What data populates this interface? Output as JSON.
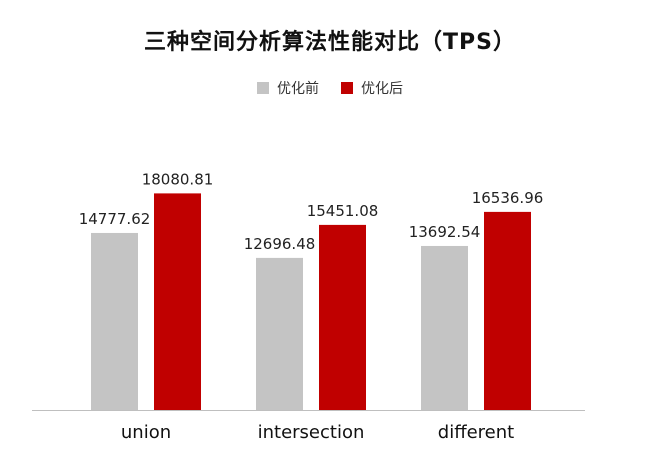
{
  "chart_data": {
    "type": "bar",
    "title": "三种空间分析算法性能对比（TPS）",
    "categories": [
      "union",
      "intersection",
      "different"
    ],
    "series": [
      {
        "name": "优化前",
        "color": "#c4c4c4",
        "values": [
          14777.62,
          12696.48,
          13692.54
        ]
      },
      {
        "name": "优化后",
        "color": "#c00000",
        "values": [
          18080.81,
          15451.08,
          16536.96
        ]
      }
    ],
    "xlabel": "",
    "ylabel": "",
    "ylim": [
      0,
      20000
    ],
    "value_labels": [
      [
        "14777.62",
        "12696.48",
        "13692.54"
      ],
      [
        "18080.81",
        "15451.08",
        "16536.96"
      ]
    ],
    "legend_position": "top-center",
    "grid": false
  }
}
